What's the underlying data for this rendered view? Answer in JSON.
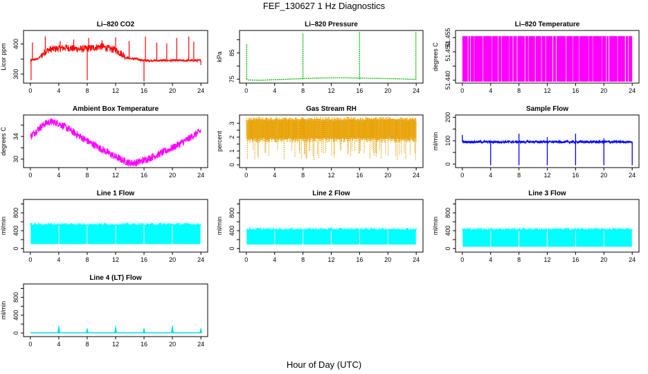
{
  "figure": {
    "title": "FEF_130627  1 Hz Diagnostics",
    "xlabel": "Hour of Day (UTC)"
  },
  "chart_data": [
    {
      "id": "co2",
      "type": "line",
      "title": "Li–820 CO2",
      "ylabel": "Licor ppm",
      "color": "#ff0000",
      "xlim": [
        0,
        24
      ],
      "ylim": [
        270,
        445
      ],
      "xticks": [
        0,
        4,
        8,
        12,
        16,
        20,
        24
      ],
      "yticks": [
        300,
        350,
        400
      ],
      "yticklabels": [
        "300",
        "",
        "400"
      ],
      "series": [
        {
          "x": [
            0,
            0.5,
            1,
            1.5,
            2,
            2.5,
            3,
            4,
            5,
            6,
            7,
            8,
            9,
            10,
            11,
            12,
            13,
            13.5,
            14,
            15,
            16,
            17,
            18,
            19,
            20,
            21,
            22,
            23,
            24
          ],
          "y": [
            345,
            348,
            350,
            360,
            372,
            380,
            383,
            385,
            388,
            385,
            383,
            385,
            388,
            392,
            385,
            380,
            365,
            355,
            352,
            350,
            345,
            345,
            345,
            345,
            345,
            345,
            345,
            345,
            345
          ]
        }
      ]
    },
    {
      "id": "pressure",
      "type": "line",
      "title": "Li–820 Pressure",
      "ylabel": "kPa",
      "color": "#00bb00",
      "xlim": [
        0,
        24
      ],
      "ylim": [
        73.5,
        93.5
      ],
      "xticks": [
        0,
        4,
        8,
        12,
        16,
        20,
        24
      ],
      "yticks": [
        75,
        80,
        85,
        90
      ],
      "yticklabels": [
        "75",
        "",
        "85",
        ""
      ],
      "series": [
        {
          "x": [
            0,
            0.2,
            2,
            4,
            6,
            8,
            10,
            12,
            14,
            16,
            18,
            20,
            22,
            23.8
          ],
          "y": [
            75.2,
            74.7,
            74.6,
            74.8,
            75.0,
            75.2,
            75.4,
            75.5,
            75.5,
            75.4,
            75.3,
            75.2,
            75.1,
            74.9
          ]
        }
      ]
    },
    {
      "id": "temperature",
      "type": "line",
      "title": "Li–820 Temperature",
      "ylabel": "degrees C",
      "color": "#ff00ff",
      "xlim": [
        0,
        24
      ],
      "ylim": [
        51.439,
        51.4575
      ],
      "xticks": [
        0,
        4,
        8,
        12,
        16,
        20,
        24
      ],
      "yticks": [
        51.44,
        51.445,
        51.45,
        51.455
      ],
      "yticklabels": [
        "51.440",
        "",
        "51.450",
        "51.455"
      ],
      "series": [
        {
          "x": [
            0,
            24
          ],
          "y": [
            51.44,
            51.455
          ]
        }
      ]
    },
    {
      "id": "boxtemp",
      "type": "line",
      "title": "Ambient Box Temperature",
      "ylabel": "degrees C",
      "color": "#ff00ff",
      "xlim": [
        0,
        24
      ],
      "ylim": [
        28.5,
        37.8
      ],
      "xticks": [
        0,
        4,
        8,
        12,
        16,
        20,
        24
      ],
      "yticks": [
        30,
        32,
        34,
        36
      ],
      "yticklabels": [
        "30",
        "",
        "34",
        ""
      ],
      "series": [
        {
          "x": [
            0,
            1,
            2,
            2.5,
            3,
            4,
            5,
            6,
            7,
            8,
            9,
            10,
            11,
            12,
            13,
            14,
            15,
            16,
            17,
            18,
            19,
            20,
            21,
            22,
            23,
            24
          ],
          "y": [
            34,
            35.2,
            36.2,
            36.5,
            36.6,
            36.3,
            35.6,
            34.8,
            34.0,
            33.2,
            32.5,
            31.8,
            31.1,
            30.4,
            29.8,
            29.3,
            29.4,
            29.8,
            30.3,
            30.8,
            31.4,
            32.0,
            32.7,
            33.4,
            34.2,
            35
          ]
        }
      ]
    },
    {
      "id": "rh",
      "type": "line",
      "title": "Gas Stream RH",
      "ylabel": "percent",
      "color": "#e8a000",
      "xlim": [
        0,
        24
      ],
      "ylim": [
        -0.2,
        3.6
      ],
      "xticks": [
        0,
        4,
        8,
        12,
        16,
        20,
        24
      ],
      "yticks": [
        0,
        0.5,
        1,
        1.5,
        2,
        2.5,
        3
      ],
      "yticklabels": [
        "0",
        "",
        "1",
        "",
        "2",
        "",
        "3"
      ],
      "series": [
        {
          "x": [
            0,
            24
          ],
          "y": [
            0.5,
            3.4
          ]
        }
      ]
    },
    {
      "id": "sampleflow",
      "type": "line",
      "title": "Sample Flow",
      "ylabel": "ml/min",
      "color": "#0000ff",
      "xlim": [
        0,
        24
      ],
      "ylim": [
        -15,
        210
      ],
      "xticks": [
        0,
        4,
        8,
        12,
        16,
        20,
        24
      ],
      "yticks": [
        0,
        50,
        100,
        150,
        200
      ],
      "yticklabels": [
        "0",
        "",
        "100",
        "",
        "200"
      ],
      "series": [
        {
          "x": [
            0,
            4,
            8,
            12,
            16,
            20,
            24
          ],
          "y": [
            95,
            95,
            95,
            95,
            95,
            95,
            95
          ]
        }
      ]
    },
    {
      "id": "line1",
      "type": "line",
      "title": "Line 1 Flow",
      "ylabel": "ml/min",
      "color": "#00ffff",
      "xlim": [
        0,
        24
      ],
      "ylim": [
        -80,
        1100
      ],
      "xticks": [
        0,
        4,
        8,
        12,
        16,
        20,
        24
      ],
      "yticks": [
        0,
        200,
        400,
        600,
        800,
        1000
      ],
      "yticklabels": [
        "0",
        "",
        "400",
        "",
        "800",
        ""
      ],
      "series": [
        {
          "x": [
            0,
            24
          ],
          "y": [
            100,
            530
          ]
        }
      ]
    },
    {
      "id": "line2",
      "type": "line",
      "title": "Line 2 Flow",
      "ylabel": "ml/min",
      "color": "#00ffff",
      "xlim": [
        0,
        24
      ],
      "ylim": [
        -80,
        1100
      ],
      "xticks": [
        0,
        4,
        8,
        12,
        16,
        20,
        24
      ],
      "yticks": [
        0,
        200,
        400,
        600,
        800,
        1000
      ],
      "yticklabels": [
        "0",
        "",
        "400",
        "",
        "800",
        ""
      ],
      "series": [
        {
          "x": [
            0,
            24
          ],
          "y": [
            90,
            420
          ]
        }
      ]
    },
    {
      "id": "line3",
      "type": "line",
      "title": "Line 3 Flow",
      "ylabel": "ml/min",
      "color": "#00ffff",
      "xlim": [
        0,
        24
      ],
      "ylim": [
        -80,
        1100
      ],
      "xticks": [
        0,
        4,
        8,
        12,
        16,
        20,
        24
      ],
      "yticks": [
        0,
        200,
        400,
        600,
        800,
        1000
      ],
      "yticklabels": [
        "0",
        "",
        "400",
        "",
        "800",
        ""
      ],
      "series": [
        {
          "x": [
            0,
            24
          ],
          "y": [
            40,
            420
          ]
        }
      ]
    },
    {
      "id": "line4",
      "type": "line",
      "title": "Line 4 (LT) Flow",
      "ylabel": "ml/min",
      "color": "#00dddd",
      "xlim": [
        0,
        24
      ],
      "ylim": [
        -80,
        1100
      ],
      "xticks": [
        0,
        4,
        8,
        12,
        16,
        20,
        24
      ],
      "yticks": [
        0,
        200,
        400,
        600,
        800,
        1000
      ],
      "yticklabels": [
        "0",
        "",
        "400",
        "",
        "800",
        ""
      ],
      "series": [
        {
          "x": [
            0,
            4,
            8,
            12,
            16,
            20,
            24
          ],
          "y": [
            5,
            5,
            5,
            5,
            5,
            5,
            5
          ]
        }
      ]
    }
  ]
}
